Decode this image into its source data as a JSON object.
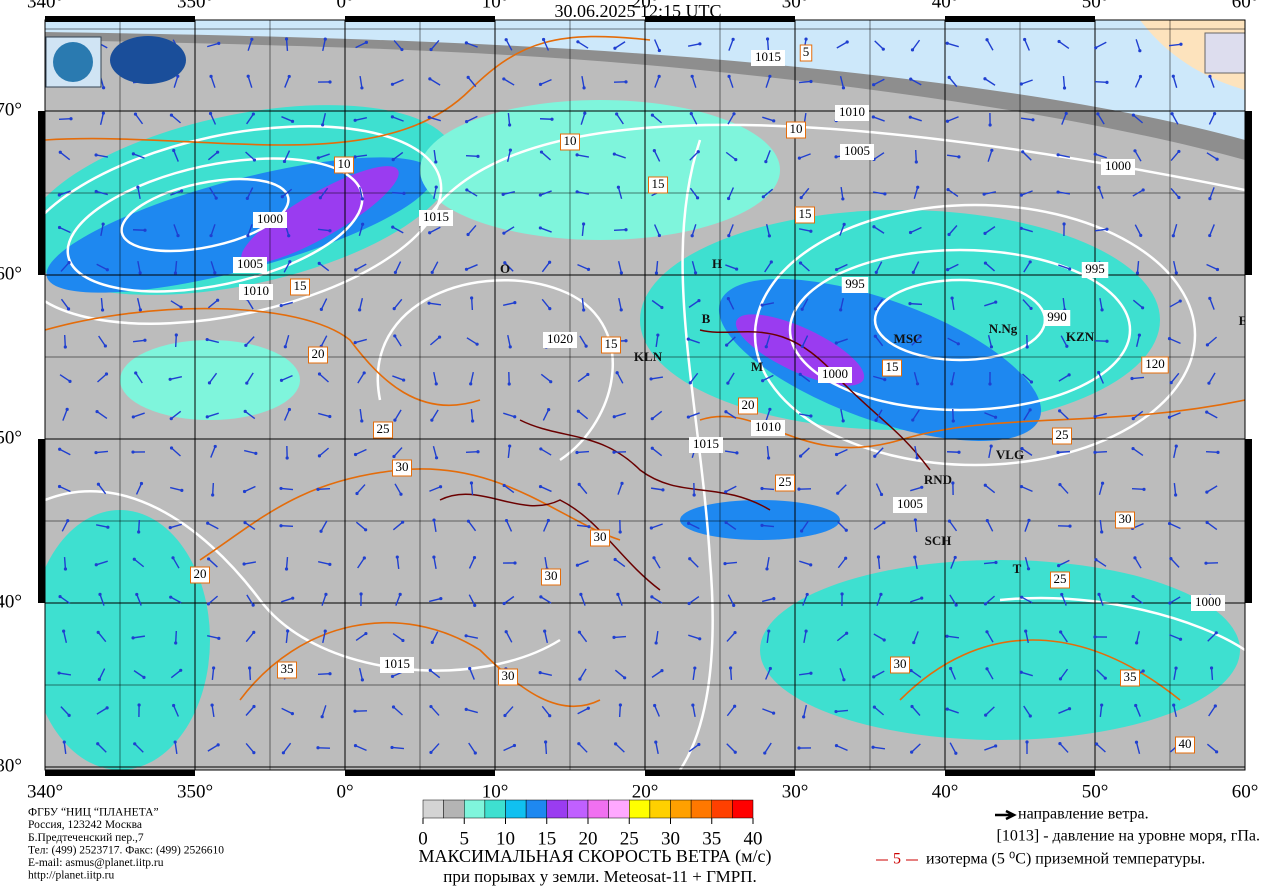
{
  "title": "30.06.2025 12:15 UTC",
  "map": {
    "lon_ticks": [
      {
        "value": -20,
        "label": "340°"
      },
      {
        "value": -10,
        "label": "350°"
      },
      {
        "value": 0,
        "label": "0°"
      },
      {
        "value": 10,
        "label": "10°"
      },
      {
        "value": 20,
        "label": "20°"
      },
      {
        "value": 30,
        "label": "30°"
      },
      {
        "value": 40,
        "label": "40°"
      },
      {
        "value": 50,
        "label": "50°"
      },
      {
        "value": 60,
        "label": "60°"
      }
    ],
    "lat_ticks": [
      {
        "value": 30,
        "label": "30°"
      },
      {
        "value": 40,
        "label": "40°"
      },
      {
        "value": 50,
        "label": "50°"
      },
      {
        "value": 60,
        "label": "60°"
      },
      {
        "value": 70,
        "label": "70°"
      }
    ],
    "contour_labels": [
      "1015",
      "5",
      "1010",
      "1005",
      "1000",
      "995",
      "995",
      "990",
      "1000",
      "1010",
      "1015",
      "1005",
      "1000",
      "1015",
      "1020",
      "1015",
      "1010",
      "1005",
      "1000",
      "10",
      "10",
      "10",
      "15",
      "15",
      "15",
      "15",
      "15",
      "20",
      "20",
      "20",
      "25",
      "25",
      "25",
      "25",
      "30",
      "30",
      "30",
      "30",
      "30",
      "30",
      "35",
      "35",
      "40",
      "120"
    ],
    "city_labels": [
      "MSC",
      "KZN",
      "N.Ng",
      "VLG",
      "SCH",
      "RND",
      "KLN",
      "M",
      "B",
      "H",
      "O",
      "T",
      "EK"
    ]
  },
  "colorbar": {
    "bounds": [
      0,
      2.5,
      5,
      7.5,
      10,
      12.5,
      15,
      17.5,
      20,
      22.5,
      25,
      27.5,
      30,
      32.5,
      35,
      37.5,
      40
    ],
    "colors": [
      "#d4d4d4",
      "#b4b4b4",
      "#7ff5dc",
      "#3ee0d0",
      "#10c0f0",
      "#1e88f0",
      "#9a3cf0",
      "#c060ff",
      "#f070f0",
      "#ffa8ff",
      "#ffff00",
      "#ffd000",
      "#ffa000",
      "#ff7800",
      "#ff4000",
      "#ff0000"
    ],
    "ticks": [
      0,
      5,
      10,
      15,
      20,
      25,
      30,
      35,
      40
    ]
  },
  "caption": [
    "МАКСИМАЛЬНАЯ СКОРОСТЬ ВЕТРА (м/с)",
    "при порывах у земли.    Meteosat-11 + ГМРП."
  ],
  "organization": [
    "ФГБУ “НИЦ “ПЛАНЕТА”",
    "Россия, 123242 Москва",
    "Б.Предтеченский пер.,7",
    "Тел: (499) 2523717. Факс: (499) 2526610",
    "E-mail: asmus@planet.iitp.ru",
    "http://planet.iitp.ru"
  ],
  "legend": {
    "wind": "направление ветра.",
    "pressure": "[1013] - давление на уровне моря, гПа.",
    "isotherm_value": "5",
    "isotherm": "изотерма (5 ⁰C) приземной температуры."
  }
}
